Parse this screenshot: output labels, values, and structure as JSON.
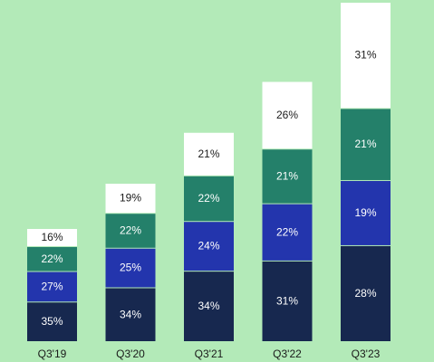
{
  "chart_data": {
    "type": "bar",
    "stacked": true,
    "title": "",
    "xlabel": "",
    "ylabel": "",
    "categories": [
      "Q3'19",
      "Q3'20",
      "Q3'21",
      "Q3'22",
      "Q3'23"
    ],
    "totals": [
      1.0,
      1.4,
      1.85,
      2.3,
      3.0
    ],
    "series": [
      {
        "color": "#17284f",
        "text_color": "#ffffff",
        "values": [
          "35%",
          "34%",
          "34%",
          "31%",
          "28%"
        ]
      },
      {
        "color": "#2335ad",
        "text_color": "#ffffff",
        "values": [
          "27%",
          "25%",
          "24%",
          "22%",
          "19%"
        ]
      },
      {
        "color": "#24806a",
        "text_color": "#ffffff",
        "values": [
          "22%",
          "22%",
          "22%",
          "21%",
          "21%"
        ]
      },
      {
        "color": "#ffffff",
        "text_color": "#1a1a1a",
        "values": [
          "16%",
          "19%",
          "21%",
          "26%",
          "31%"
        ]
      }
    ],
    "legend": "none",
    "grid": false
  },
  "colors": {
    "background": "#b3eab8"
  }
}
